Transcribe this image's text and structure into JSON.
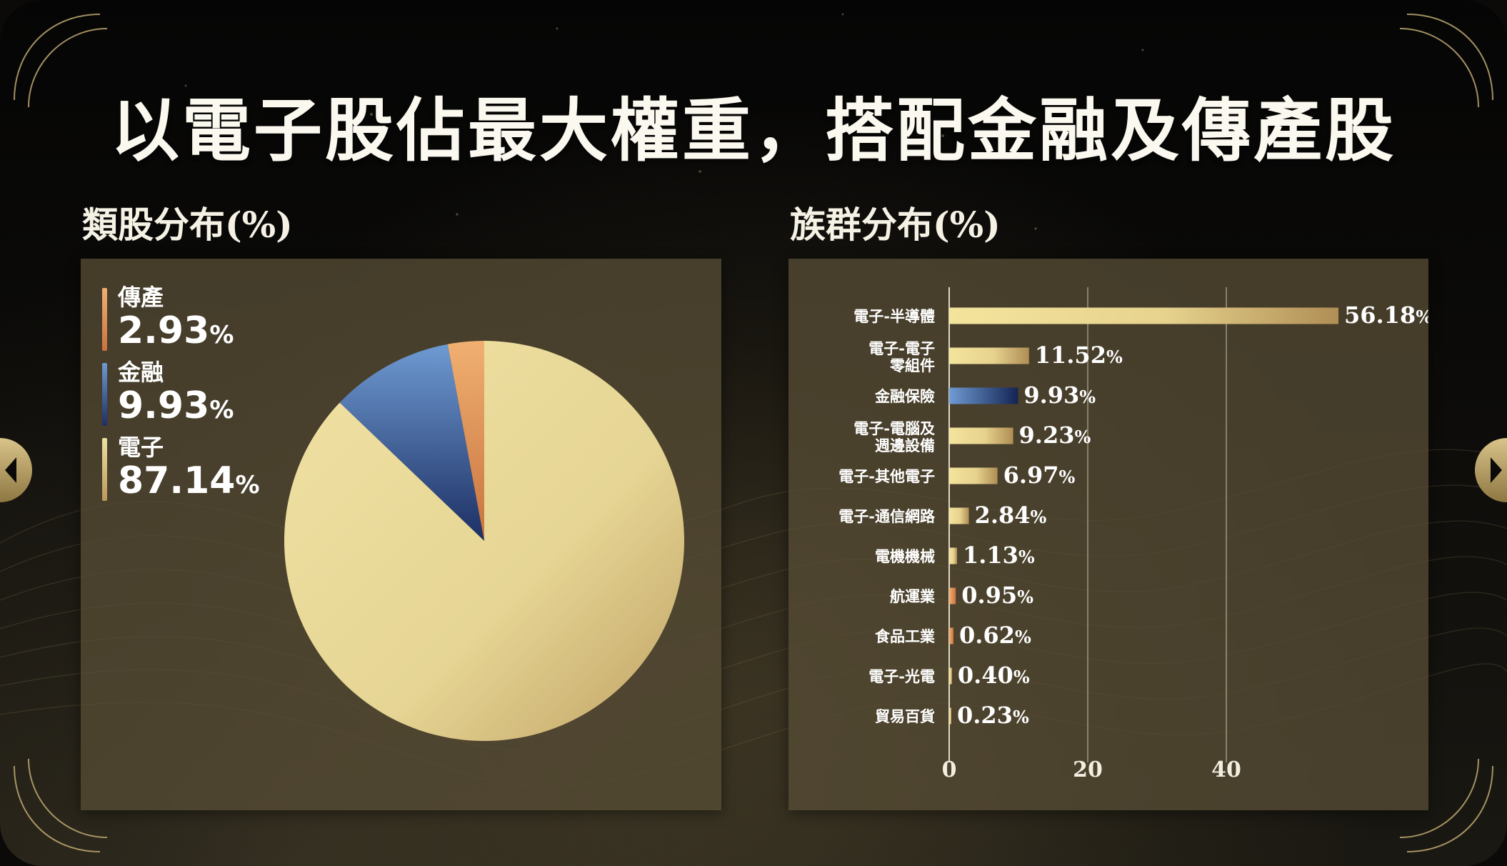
{
  "slide": {
    "title": "以電子股佔最大權重，搭配金融及傳產股"
  },
  "colors": {
    "gold_light": "#efe0a0",
    "gold_dark": "#b9985a",
    "blue_light": "#6e9ad2",
    "blue_dark": "#1c2f63",
    "orange": "#e3955a",
    "panel": "#564c34"
  },
  "chart_data": [
    {
      "type": "pie",
      "title": "類股分布(%)",
      "unit": "%",
      "legend_position": "left",
      "slices": [
        {
          "name": "傳產",
          "value": 2.93,
          "display": "2.93",
          "color": "#e3955a"
        },
        {
          "name": "金融",
          "value": 9.93,
          "display": "9.93",
          "color": "#3b5d9a"
        },
        {
          "name": "電子",
          "value": 87.14,
          "display": "87.14",
          "color": "#e9d98f"
        }
      ]
    },
    {
      "type": "bar",
      "orientation": "horizontal",
      "title": "族群分布(%)",
      "unit": "%",
      "xlim": [
        0,
        56.18
      ],
      "xticks": [
        0,
        20,
        40
      ],
      "grid": true,
      "categories": [
        "電子-半導體",
        "電子-電子零組件",
        "金融保險",
        "電子-電腦及週邊設備",
        "電子-其他電子",
        "電子-通信網路",
        "電機機械",
        "航運業",
        "食品工業",
        "電子-光電",
        "貿易百貨"
      ],
      "category_lines": [
        [
          "電子-半導體"
        ],
        [
          "電子-電子",
          "零組件"
        ],
        [
          "金融保險"
        ],
        [
          "電子-電腦及",
          "週邊設備"
        ],
        [
          "電子-其他電子"
        ],
        [
          "電子-通信網路"
        ],
        [
          "電機機械"
        ],
        [
          "航運業"
        ],
        [
          "食品工業"
        ],
        [
          "電子-光電"
        ],
        [
          "貿易百貨"
        ]
      ],
      "values": [
        56.18,
        11.52,
        9.93,
        9.23,
        6.97,
        2.84,
        1.13,
        0.95,
        0.62,
        0.4,
        0.23
      ],
      "value_labels": [
        "56.18",
        "11.52",
        "9.93",
        "9.23",
        "6.97",
        "2.84",
        "1.13",
        "0.95",
        "0.62",
        "0.40",
        "0.23"
      ],
      "bar_colors": [
        "gold",
        "gold",
        "blue",
        "gold",
        "gold",
        "gold",
        "gold",
        "orange",
        "orange",
        "gold",
        "gold"
      ]
    }
  ]
}
